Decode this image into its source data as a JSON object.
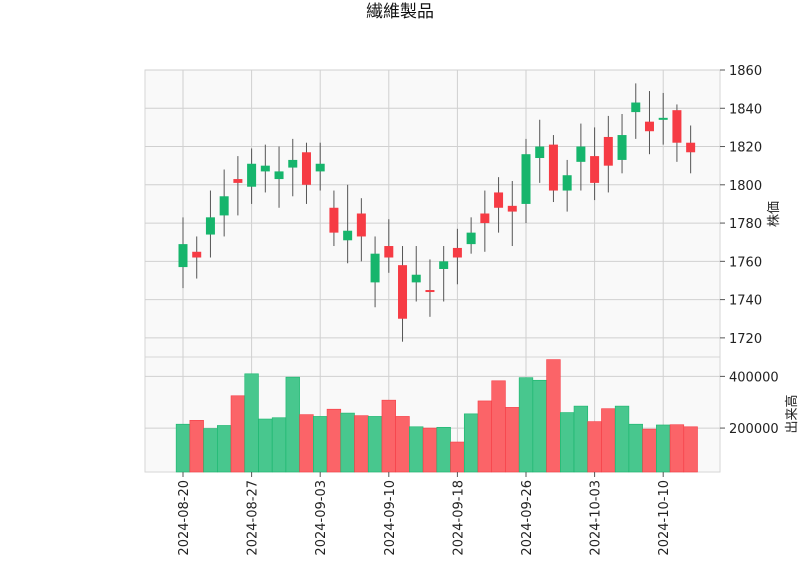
{
  "chart_data": {
    "type": "candlestick",
    "title": "繊維製品",
    "price_ylabel": "株価",
    "volume_ylabel": "出来高",
    "price_ylim": [
      1710,
      1860
    ],
    "price_ticks": [
      1720,
      1740,
      1760,
      1780,
      1800,
      1820,
      1840,
      1860
    ],
    "volume_ylim": [
      30000,
      475000
    ],
    "volume_ticks": [
      200000,
      400000
    ],
    "x_tick_labels": [
      "2024-08-20",
      "2024-08-27",
      "2024-09-03",
      "2024-09-10",
      "2024-09-18",
      "2024-09-26",
      "2024-10-03",
      "2024-10-10"
    ],
    "x_tick_indices": [
      0,
      5,
      10,
      15,
      20,
      25,
      30,
      35
    ],
    "up_color": "#16b56c",
    "down_color": "#f63b44",
    "up_volume_color": "#48c78e",
    "down_volume_color": "#fb6468",
    "candles": [
      {
        "o": 1757,
        "h": 1783,
        "l": 1746,
        "c": 1769,
        "v": 215000
      },
      {
        "o": 1765,
        "h": 1773,
        "l": 1751,
        "c": 1762,
        "v": 230000
      },
      {
        "o": 1774,
        "h": 1797,
        "l": 1762,
        "c": 1783,
        "v": 198000
      },
      {
        "o": 1784,
        "h": 1808,
        "l": 1773,
        "c": 1794,
        "v": 210000
      },
      {
        "o": 1803,
        "h": 1815,
        "l": 1784,
        "c": 1801,
        "v": 325000
      },
      {
        "o": 1799,
        "h": 1819,
        "l": 1790,
        "c": 1811,
        "v": 410000
      },
      {
        "o": 1807,
        "h": 1821,
        "l": 1796,
        "c": 1810,
        "v": 235000
      },
      {
        "o": 1803,
        "h": 1820,
        "l": 1788,
        "c": 1807,
        "v": 240000
      },
      {
        "o": 1809,
        "h": 1824,
        "l": 1794,
        "c": 1813,
        "v": 397000
      },
      {
        "o": 1817,
        "h": 1822,
        "l": 1790,
        "c": 1800,
        "v": 252000
      },
      {
        "o": 1807,
        "h": 1822,
        "l": 1797,
        "c": 1811,
        "v": 245000
      },
      {
        "o": 1788,
        "h": 1797,
        "l": 1768,
        "c": 1775,
        "v": 273000
      },
      {
        "o": 1771,
        "h": 1800,
        "l": 1759,
        "c": 1776,
        "v": 258000
      },
      {
        "o": 1785,
        "h": 1793,
        "l": 1760,
        "c": 1773,
        "v": 248000
      },
      {
        "o": 1749,
        "h": 1773,
        "l": 1736,
        "c": 1764,
        "v": 245000
      },
      {
        "o": 1768,
        "h": 1782,
        "l": 1754,
        "c": 1762,
        "v": 308000
      },
      {
        "o": 1758,
        "h": 1768,
        "l": 1718,
        "c": 1730,
        "v": 245000
      },
      {
        "o": 1749,
        "h": 1768,
        "l": 1739,
        "c": 1753,
        "v": 205000
      },
      {
        "o": 1745,
        "h": 1761,
        "l": 1731,
        "c": 1744,
        "v": 200000
      },
      {
        "o": 1756,
        "h": 1768,
        "l": 1739,
        "c": 1760,
        "v": 203000
      },
      {
        "o": 1767,
        "h": 1777,
        "l": 1748,
        "c": 1762,
        "v": 146000
      },
      {
        "o": 1769,
        "h": 1783,
        "l": 1764,
        "c": 1775,
        "v": 255000
      },
      {
        "o": 1785,
        "h": 1797,
        "l": 1765,
        "c": 1780,
        "v": 305000
      },
      {
        "o": 1796,
        "h": 1804,
        "l": 1775,
        "c": 1788,
        "v": 383000
      },
      {
        "o": 1789,
        "h": 1802,
        "l": 1768,
        "c": 1786,
        "v": 280000
      },
      {
        "o": 1790,
        "h": 1824,
        "l": 1780,
        "c": 1816,
        "v": 395000
      },
      {
        "o": 1814,
        "h": 1834,
        "l": 1801,
        "c": 1820,
        "v": 385000
      },
      {
        "o": 1821,
        "h": 1826,
        "l": 1791,
        "c": 1797,
        "v": 465000
      },
      {
        "o": 1797,
        "h": 1813,
        "l": 1786,
        "c": 1805,
        "v": 260000
      },
      {
        "o": 1812,
        "h": 1832,
        "l": 1797,
        "c": 1820,
        "v": 285000
      },
      {
        "o": 1815,
        "h": 1830,
        "l": 1792,
        "c": 1801,
        "v": 225000
      },
      {
        "o": 1825,
        "h": 1836,
        "l": 1796,
        "c": 1810,
        "v": 275000
      },
      {
        "o": 1813,
        "h": 1837,
        "l": 1806,
        "c": 1826,
        "v": 285000
      },
      {
        "o": 1838,
        "h": 1853,
        "l": 1824,
        "c": 1843,
        "v": 215000
      },
      {
        "o": 1833,
        "h": 1849,
        "l": 1816,
        "c": 1828,
        "v": 196000
      },
      {
        "o": 1834,
        "h": 1848,
        "l": 1821,
        "c": 1835,
        "v": 212000
      },
      {
        "o": 1839,
        "h": 1842,
        "l": 1812,
        "c": 1822,
        "v": 213000
      },
      {
        "o": 1822,
        "h": 1831,
        "l": 1806,
        "c": 1817,
        "v": 205000
      }
    ]
  }
}
